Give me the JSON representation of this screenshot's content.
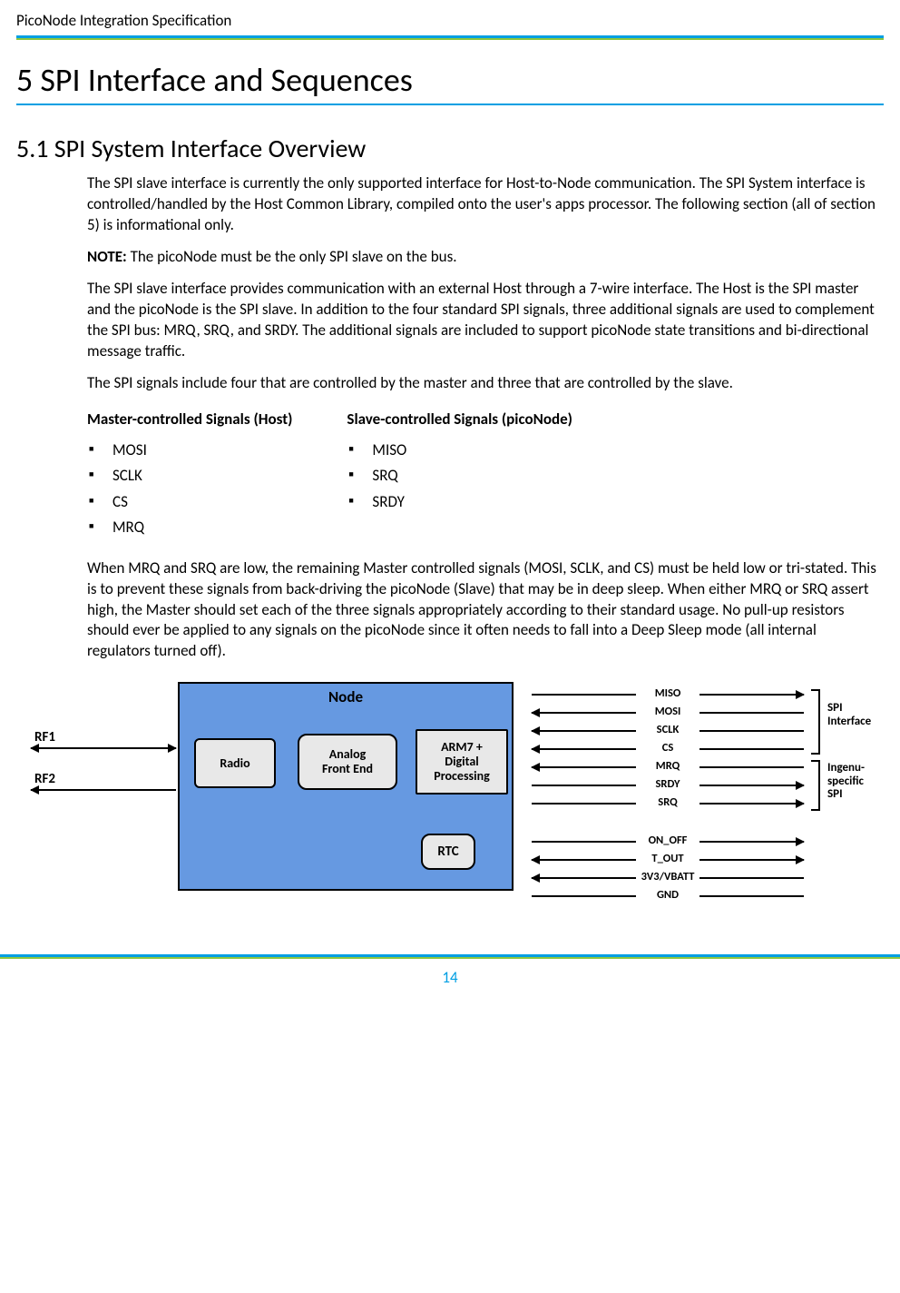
{
  "doc": {
    "header": "PicoNode Integration Specification",
    "page_number": "14"
  },
  "headings": {
    "h1": "5 SPI Interface and Sequences",
    "h2": "5.1 SPI System Interface Overview"
  },
  "paragraphs": {
    "p1": "The SPI slave interface is currently the only supported interface for Host-to-Node communication. The SPI System interface is controlled/handled by the Host Common Library, compiled onto the user's apps processor. The following section (all of section 5) is informational only.",
    "note_label": "NOTE:",
    "note_text": "  The picoNode must be the only SPI slave on the bus.",
    "p2": "The SPI slave interface provides communication with an external Host through a 7-wire interface. The Host is the SPI master and the picoNode is the SPI slave. In addition to the four standard SPI signals, three additional signals are used to complement the SPI bus: MRQ, SRQ, and SRDY. The additional signals are included to support picoNode state transitions and bi-directional message traffic.",
    "p3": "The SPI signals include four that are controlled by the master and three that are controlled by the slave.",
    "p4": "When MRQ and SRQ are low, the remaining Master controlled signals (MOSI, SCLK, and CS) must be held low or tri-stated. This is to prevent these signals from back-driving the picoNode (Slave) that may be in deep sleep. When either MRQ or SRQ assert high, the Master should set each of the three signals appropriately according to their standard usage. No pull-up resistors should ever be applied to any signals on the picoNode since it often needs to fall into a Deep Sleep mode (all internal regulators turned off)."
  },
  "signals": {
    "master_title": "Master-controlled Signals (Host)",
    "slave_title": "Slave-controlled Signals (picoNode)",
    "master_items": [
      "MOSI",
      "SCLK",
      "CS",
      "MRQ"
    ],
    "slave_items": [
      "MISO",
      "SRQ",
      "SRDY"
    ]
  },
  "diagram": {
    "node_title": "Node",
    "blocks": {
      "radio": "Radio",
      "afe": "Analog\nFront End",
      "arm": "ARM7 +\nDigital\nProcessing",
      "rtc": "RTC"
    },
    "rf_labels": {
      "rf1": "RF1",
      "rf2": "RF2"
    },
    "signal_rows_top": [
      {
        "label": "MISO",
        "left_arrow": false,
        "right_arrow": true
      },
      {
        "label": "MOSI",
        "left_arrow": true,
        "right_arrow": false
      },
      {
        "label": "SCLK",
        "left_arrow": true,
        "right_arrow": false
      },
      {
        "label": "CS",
        "left_arrow": true,
        "right_arrow": false
      },
      {
        "label": "MRQ",
        "left_arrow": true,
        "right_arrow": false
      },
      {
        "label": "SRDY",
        "left_arrow": false,
        "right_arrow": true
      },
      {
        "label": "SRQ",
        "left_arrow": false,
        "right_arrow": true
      }
    ],
    "signal_rows_bottom": [
      {
        "label": "ON_OFF",
        "left_arrow": false,
        "right_arrow": true
      },
      {
        "label": "T_OUT",
        "left_arrow": true,
        "right_arrow": true
      },
      {
        "label": "3V3/VBATT",
        "left_arrow": true,
        "right_arrow": false
      },
      {
        "label": "GND",
        "left_arrow": false,
        "right_arrow": false
      }
    ],
    "brackets": {
      "spi": "SPI\nInterface",
      "ingenu": "Ingenu-\nspecific\nSPI"
    },
    "colors": {
      "node_fill": "#6699e1",
      "block_fill": "#e8e8e8",
      "border": "#000000",
      "accent_blue": "#009fe3",
      "accent_green": "#8cc63f"
    }
  }
}
